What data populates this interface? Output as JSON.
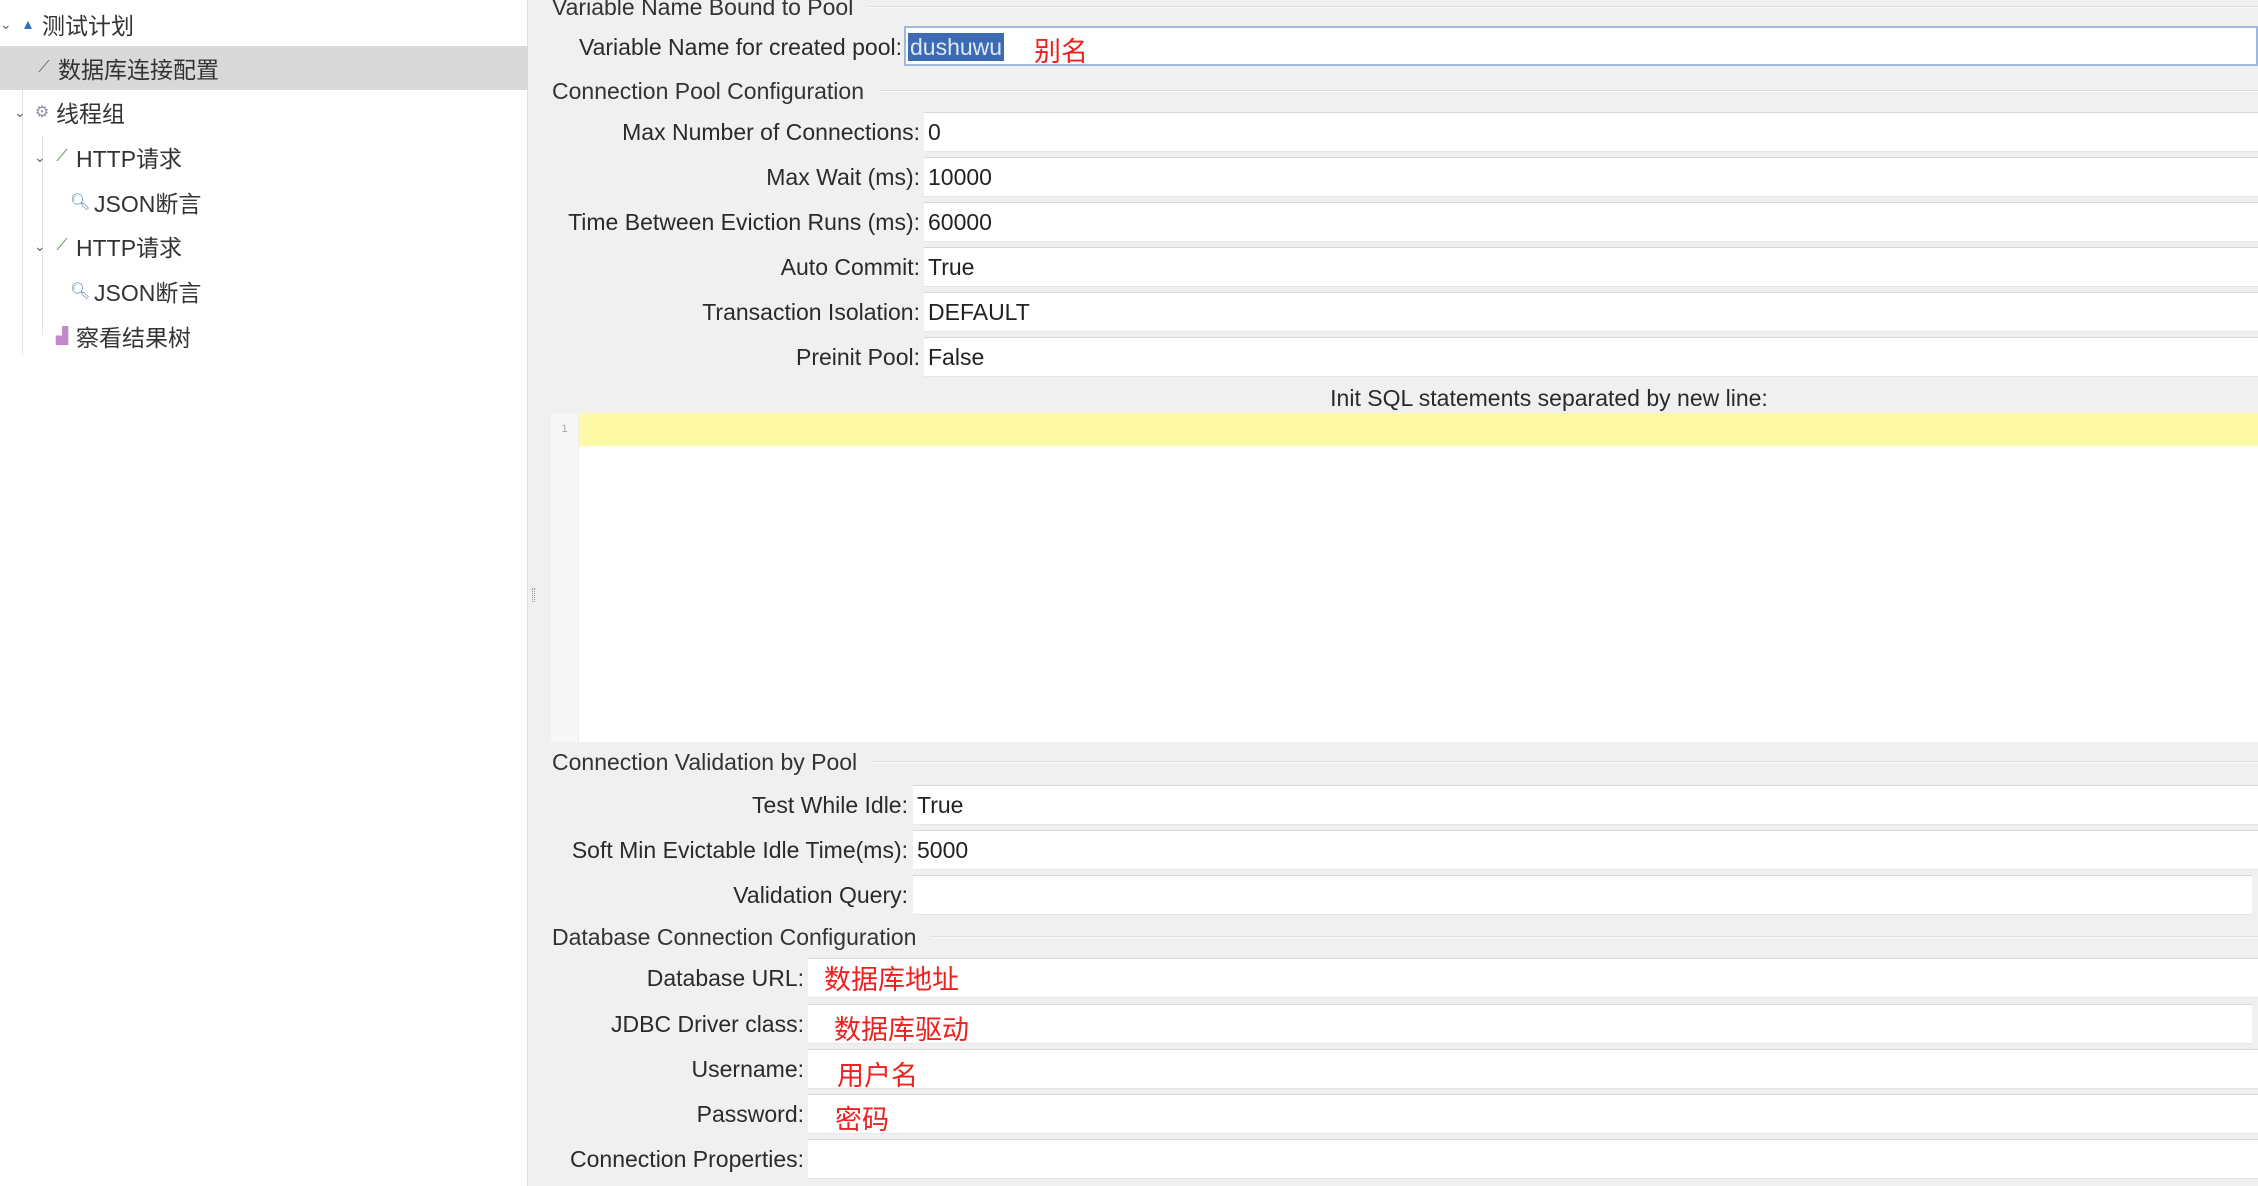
{
  "tree": {
    "items": [
      {
        "label": "测试计划",
        "icon": "test-plan-icon"
      },
      {
        "label": "数据库连接配置",
        "icon": "config-wrench-icon",
        "selected": true
      },
      {
        "label": "线程组",
        "icon": "gear-icon"
      },
      {
        "label": "HTTP请求",
        "icon": "sampler-pen-icon"
      },
      {
        "label": "JSON断言",
        "icon": "magnifier-icon"
      },
      {
        "label": "HTTP请求",
        "icon": "sampler-pen-icon"
      },
      {
        "label": "JSON断言",
        "icon": "magnifier-icon"
      },
      {
        "label": "察看结果树",
        "icon": "listener-chart-icon"
      }
    ]
  },
  "form": {
    "bound_section": "Variable Name Bound to Pool",
    "varname_label": "Variable Name for created pool:",
    "varname_value": "dushuwu",
    "varname_note": "别名",
    "pool_section": "Connection Pool Configuration",
    "pool_fields": [
      {
        "label": "Max Number of Connections:",
        "value": "0"
      },
      {
        "label": "Max Wait (ms):",
        "value": "10000"
      },
      {
        "label": "Time Between Eviction Runs (ms):",
        "value": "60000"
      },
      {
        "label": "Auto Commit:",
        "value": "True"
      },
      {
        "label": "Transaction Isolation:",
        "value": "DEFAULT"
      },
      {
        "label": "Preinit Pool:",
        "value": "False"
      }
    ],
    "init_sql_label": "Init SQL statements separated by new line:",
    "init_sql_line_number": "1",
    "validation_section": "Connection Validation by Pool",
    "validation_fields": [
      {
        "label": "Test While Idle:",
        "value": "True"
      },
      {
        "label": "Soft Min Evictable Idle Time(ms):",
        "value": "5000"
      },
      {
        "label": "Validation Query:",
        "value": ""
      }
    ],
    "db_section": "Database Connection Configuration",
    "db_fields": [
      {
        "label": "Database URL:",
        "value": "",
        "note": "数据库地址"
      },
      {
        "label": "JDBC Driver class:",
        "value": "",
        "note": "数据库驱动"
      },
      {
        "label": "Username:",
        "value": "",
        "note": "用户名"
      },
      {
        "label": "Password:",
        "value": "",
        "note": "密码"
      },
      {
        "label": "Connection Properties:",
        "value": ""
      }
    ]
  },
  "colors": {
    "selection": "#3d6bb3",
    "annotation": "#f02020",
    "current_line": "#fdf9a4",
    "tree_selected": "#d9d9d9"
  }
}
